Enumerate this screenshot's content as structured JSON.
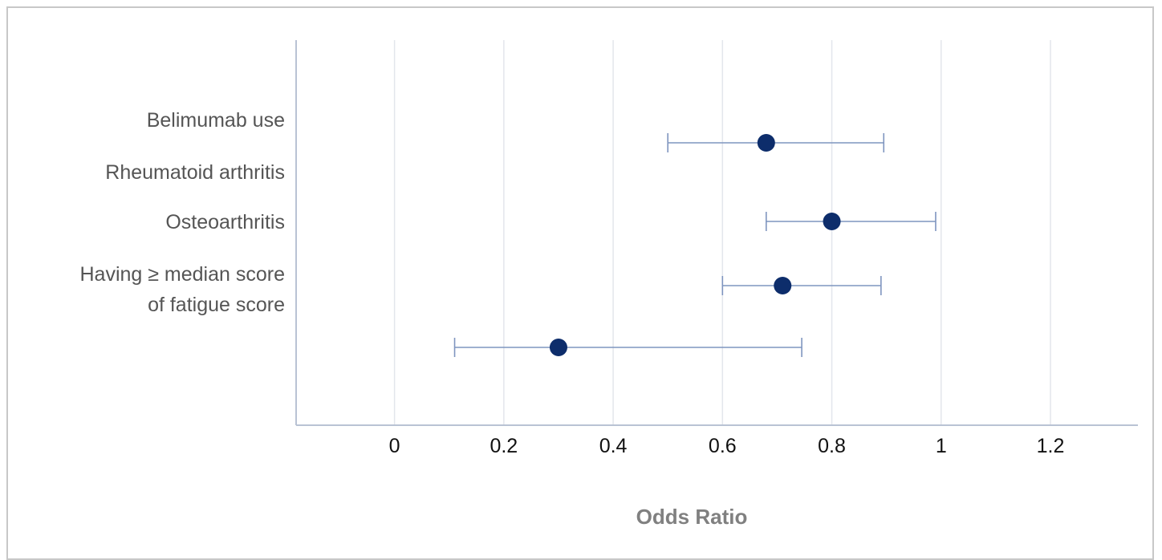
{
  "chart_data": {
    "type": "scatter",
    "subtype": "forest-plot",
    "title": "",
    "xlabel": "Odds Ratio",
    "ylabel": "",
    "xlim": [
      -0.18,
      1.36
    ],
    "x_ticks": [
      0,
      0.2,
      0.4,
      0.6,
      0.8,
      1,
      1.2
    ],
    "x_tick_labels": [
      "0",
      "0.2",
      "0.4",
      "0.6",
      "0.8",
      "1",
      "1.2"
    ],
    "grid": true,
    "row_labels": [
      [
        "Belimumab use"
      ],
      [
        "Rheumatoid arthritis"
      ],
      [
        "Osteoarthritis"
      ],
      [
        "Having ≥ median score",
        "of fatigue score"
      ]
    ],
    "points": [
      {
        "or": 0.68,
        "ci_low": 0.5,
        "ci_high": 0.895
      },
      {
        "or": 0.8,
        "ci_low": 0.68,
        "ci_high": 0.99
      },
      {
        "or": 0.71,
        "ci_low": 0.6,
        "ci_high": 0.89
      },
      {
        "or": 0.3,
        "ci_low": 0.11,
        "ci_high": 0.745
      }
    ],
    "colors": {
      "point": "#0d2d6b",
      "ci_line": "#7f95bf",
      "grid": "#e3e6ec",
      "axis": "#b9c3d4"
    }
  }
}
